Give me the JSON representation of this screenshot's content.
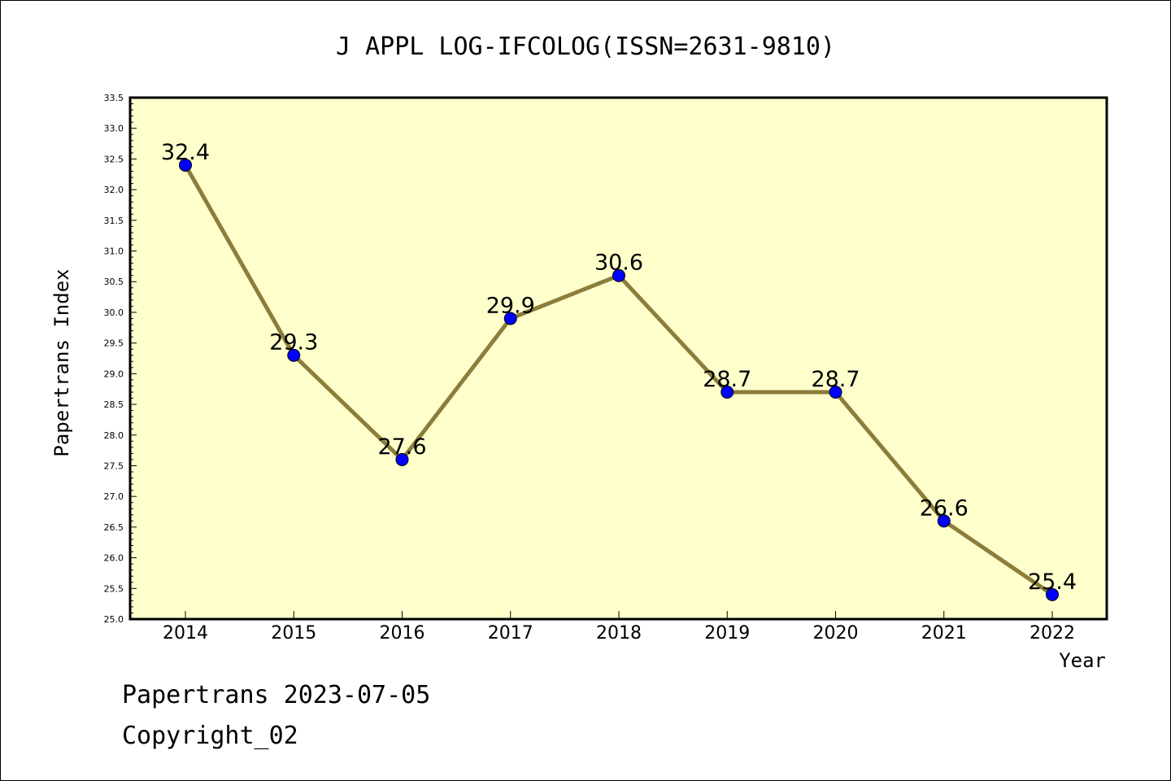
{
  "chart_data": {
    "type": "line",
    "title": "J APPL LOG-IFCOLOG(ISSN=2631-9810)",
    "xlabel": "Year",
    "ylabel": "Papertrans Index",
    "categories": [
      "2014",
      "2015",
      "2016",
      "2017",
      "2018",
      "2019",
      "2020",
      "2021",
      "2022"
    ],
    "series": [
      {
        "values": [
          32.4,
          29.3,
          27.6,
          29.9,
          30.6,
          28.7,
          28.7,
          26.6,
          25.4
        ]
      }
    ],
    "data_labels": [
      "32.4",
      "29.3",
      "27.6",
      "29.9",
      "30.6",
      "28.7",
      "28.7",
      "26.6",
      "25.4"
    ],
    "ylim": [
      25.0,
      33.5
    ],
    "yticks": [
      "25.0",
      "25.5",
      "26.0",
      "26.5",
      "27.0",
      "27.5",
      "28.0",
      "28.5",
      "29.0",
      "29.5",
      "30.0",
      "30.5",
      "31.0",
      "31.5",
      "32.0",
      "32.5",
      "33.0",
      "33.5"
    ],
    "grid": false,
    "colors": {
      "plot_background": "#ffffcc",
      "line": "#8b7d3a",
      "marker": "#0000ff"
    }
  },
  "footer": {
    "line1": "Papertrans 2023-07-05",
    "line2": "Copyright_02"
  }
}
